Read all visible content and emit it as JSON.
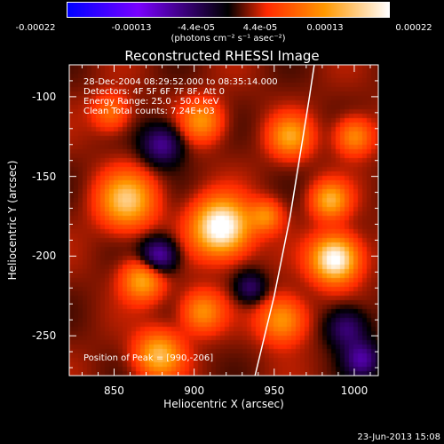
{
  "colorbar": {
    "ticks": [
      "-0.00022",
      "-0.00013",
      "-4.4e-05",
      "4.4e-05",
      "0.00013",
      "0.00022"
    ],
    "unit": "(photons cm⁻² s⁻¹ asec⁻²)",
    "colors": [
      "#0000ff",
      "#7a00ff",
      "#000000",
      "#ff2a00",
      "#ff9900",
      "#ffffff"
    ]
  },
  "chart_data": {
    "type": "heatmap",
    "title": "Reconstructed RHESSI Image",
    "xlabel": "Heliocentric X (arcsec)",
    "ylabel": "Heliocentric Y (arcsec)",
    "xlim": [
      822,
      1015
    ],
    "ylim": [
      -275,
      -80
    ],
    "xticks": [
      850,
      900,
      950,
      1000
    ],
    "yticks": [
      -100,
      -150,
      -200,
      -250
    ],
    "annotations": [
      "28-Dec-2004 08:29:52.000 to 08:35:14.000",
      "Detectors: 4F 5F 6F 7F 8F, Att 0",
      "Energy Range: 25.0 - 50.0 keV",
      "Clean     Total counts: 7.24E+03"
    ],
    "peak_text": "Position of Peak = [990,-206]",
    "limb": [
      [
        938,
        -275
      ],
      [
        944,
        -250
      ],
      [
        950,
        -225
      ],
      [
        955,
        -200
      ],
      [
        960,
        -175
      ],
      [
        964,
        -150
      ],
      [
        968,
        -125
      ],
      [
        972,
        -100
      ],
      [
        975,
        -80
      ]
    ],
    "sources": [
      {
        "x": 917,
        "y": -182,
        "amp": 1.0,
        "s": 12
      },
      {
        "x": 988,
        "y": -202,
        "amp": 0.95,
        "s": 10
      },
      {
        "x": 858,
        "y": -165,
        "amp": 0.65,
        "s": 12
      },
      {
        "x": 868,
        "y": -215,
        "amp": 0.55,
        "s": 9
      },
      {
        "x": 985,
        "y": -165,
        "amp": 0.55,
        "s": 8
      },
      {
        "x": 905,
        "y": -115,
        "amp": 0.45,
        "s": 9
      },
      {
        "x": 960,
        "y": -125,
        "amp": 0.5,
        "s": 9
      },
      {
        "x": 878,
        "y": -262,
        "amp": 0.6,
        "s": 10
      },
      {
        "x": 905,
        "y": -235,
        "amp": 0.45,
        "s": 9
      },
      {
        "x": 955,
        "y": -240,
        "amp": 0.5,
        "s": 10
      },
      {
        "x": 1000,
        "y": -125,
        "amp": 0.45,
        "s": 8
      },
      {
        "x": 848,
        "y": -110,
        "amp": 0.35,
        "s": 8
      },
      {
        "x": 945,
        "y": -175,
        "amp": 0.4,
        "s": 7
      },
      {
        "x": 880,
        "y": -130,
        "amp": -0.45,
        "s": 9
      },
      {
        "x": 878,
        "y": -200,
        "amp": -0.55,
        "s": 8
      },
      {
        "x": 935,
        "y": -220,
        "amp": -0.35,
        "s": 7
      },
      {
        "x": 995,
        "y": -245,
        "amp": -0.4,
        "s": 9
      },
      {
        "x": 1005,
        "y": -265,
        "amp": -0.45,
        "s": 8
      }
    ]
  },
  "stamp": "23-Jun-2013 15:08"
}
